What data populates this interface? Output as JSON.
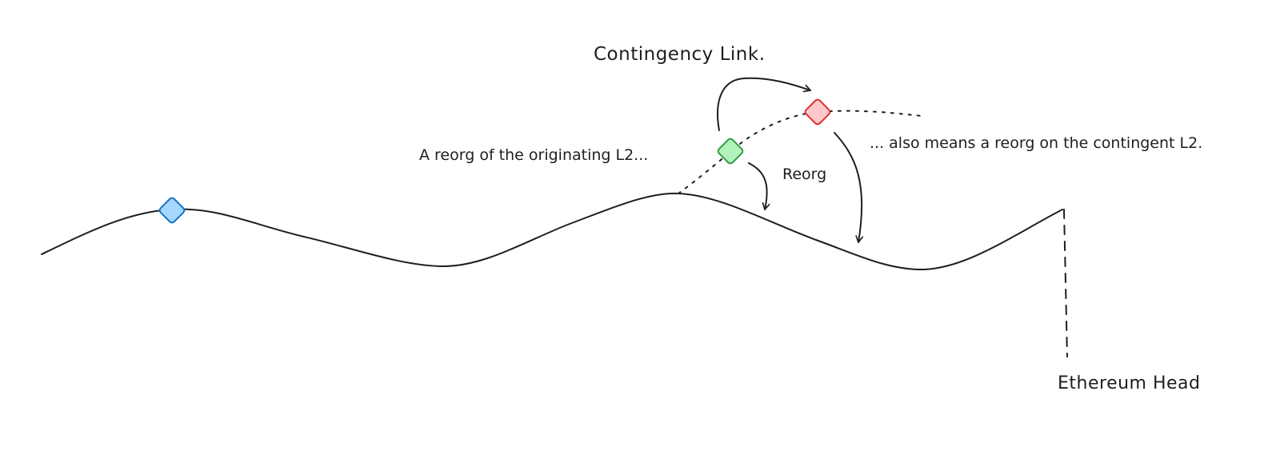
{
  "labels": {
    "contingency_link": "Contingency Link.",
    "reorg_origin": "A reorg of the originating L2...",
    "reorg_contingent": "... also means a reorg on the contingent L2.",
    "reorg": "Reorg",
    "ethereum_head": "Ethereum Head"
  },
  "colors": {
    "line": "#1e1e1e",
    "blue_fill": "#a5d8ff",
    "blue_stroke": "#1971c2",
    "green_fill": "#b2f2bb",
    "green_stroke": "#2f9e44",
    "red_fill": "#ffc9c9",
    "red_stroke": "#e03131"
  }
}
